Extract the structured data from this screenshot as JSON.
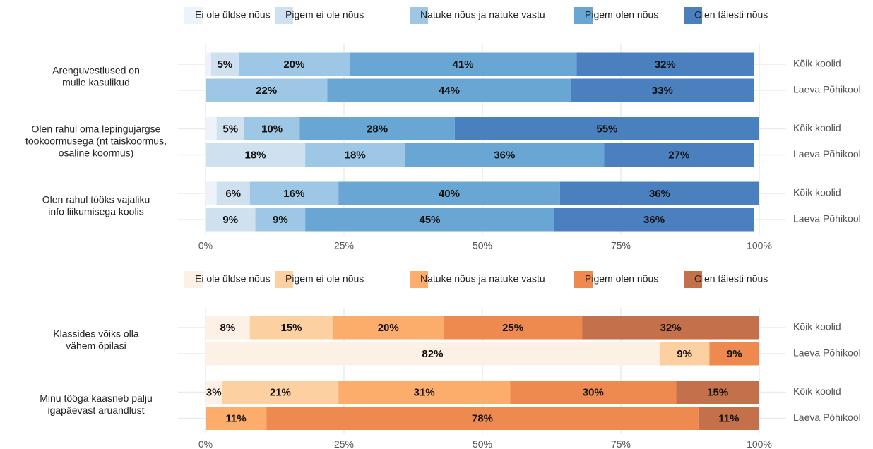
{
  "chart_data": [
    {
      "type": "bar",
      "questions": [
        [
          "Arenguvestlused on",
          "mulle kasulikud"
        ],
        [
          "Olen rahul oma lepingujärgse",
          "töökoormusega (nt täiskoormus,",
          "osaline koormus)"
        ],
        [
          "Olen rahul tööks vajaliku",
          "info liikumisega koolis"
        ]
      ],
      "categories": [
        "Kõik koolid",
        "Laeva Põhikool",
        "Kõik koolid",
        "Laeva Põhikool",
        "Kõik koolid",
        "Laeva Põhikool"
      ],
      "series": [
        {
          "name": "Ei ole üldse nõus",
          "color": "#eef3fb",
          "values": [
            1,
            0,
            2,
            0,
            2,
            0
          ],
          "value_labels": [
            null,
            null,
            null,
            null,
            null,
            null
          ]
        },
        {
          "name": "Pigem ei ole nõus",
          "color": "#cfe0ee",
          "values": [
            5,
            0,
            5,
            18,
            6,
            9
          ],
          "value_labels": [
            "5%",
            null,
            "5%",
            "18%",
            "6%",
            "9%"
          ]
        },
        {
          "name": "Natuke nõus ja natuke vastu",
          "color": "#9dc7e4",
          "values": [
            20,
            22,
            10,
            18,
            16,
            9
          ],
          "value_labels": [
            "20%",
            "22%",
            "10%",
            "18%",
            "16%",
            "9%"
          ]
        },
        {
          "name": "Pigem olen nõus",
          "color": "#6aa6d3",
          "values": [
            41,
            44,
            28,
            36,
            40,
            45
          ],
          "value_labels": [
            "41%",
            "44%",
            "28%",
            "36%",
            "40%",
            "45%"
          ]
        },
        {
          "name": "Olen täiesti nõus",
          "color": "#4a80bd",
          "values": [
            32,
            33,
            55,
            27,
            36,
            36
          ],
          "value_labels": [
            "32%",
            "33%",
            "55%",
            "27%",
            "36%",
            "36%"
          ]
        }
      ],
      "xlim": [
        0,
        100
      ],
      "xticks": [
        {
          "value": 0,
          "label": "0%"
        },
        {
          "value": 25,
          "label": "25%"
        },
        {
          "value": 50,
          "label": "50%"
        },
        {
          "value": 75,
          "label": "75%"
        },
        {
          "value": 100,
          "label": "100%"
        }
      ]
    },
    {
      "type": "bar",
      "questions": [
        [
          "Klassides võiks olla",
          "vähem õpilasi"
        ],
        [
          "Minu tööga kaasneb palju",
          "igapäevast aruandlust"
        ]
      ],
      "categories": [
        "Kõik koolid",
        "Laeva Põhikool",
        "Kõik koolid",
        "Laeva Põhikool"
      ],
      "series": [
        {
          "name": "Ei ole üldse nõus",
          "color": "#fdf0e4",
          "values": [
            8,
            82,
            3,
            0
          ],
          "value_labels": [
            "8%",
            "82%",
            "3%",
            null
          ]
        },
        {
          "name": "Pigem ei ole nõus",
          "color": "#fdd0a2",
          "values": [
            15,
            9,
            21,
            0
          ],
          "value_labels": [
            "15%",
            "9%",
            "21%",
            null
          ]
        },
        {
          "name": "Natuke nõus ja natuke vastu",
          "color": "#fdad6b",
          "values": [
            20,
            0,
            31,
            11
          ],
          "value_labels": [
            "20%",
            null,
            "31%",
            "11%"
          ]
        },
        {
          "name": "Pigem olen nõus",
          "color": "#ee8a50",
          "values": [
            25,
            9,
            30,
            78
          ],
          "value_labels": [
            "25%",
            "9%",
            "30%",
            "78%"
          ]
        },
        {
          "name": "Olen täiesti nõus",
          "color": "#c4704a",
          "values": [
            32,
            0,
            15,
            11
          ],
          "value_labels": [
            "32%",
            null,
            "15%",
            "11%"
          ]
        }
      ],
      "xlim": [
        0,
        100
      ],
      "xticks": [
        {
          "value": 0,
          "label": "0%"
        },
        {
          "value": 25,
          "label": "25%"
        },
        {
          "value": 50,
          "label": "50%"
        },
        {
          "value": 75,
          "label": "75%"
        },
        {
          "value": 100,
          "label": "100%"
        }
      ]
    }
  ]
}
